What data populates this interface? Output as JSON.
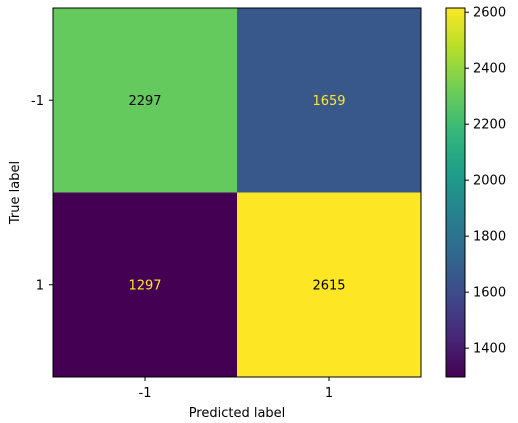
{
  "chart_data": {
    "type": "heatmap",
    "title": "",
    "xlabel": "Predicted label",
    "ylabel": "True label",
    "x_categories": [
      "-1",
      "1"
    ],
    "y_categories": [
      "-1",
      "1"
    ],
    "values": [
      [
        2297,
        1659
      ],
      [
        1297,
        2615
      ]
    ],
    "colormap": "viridis",
    "colorbar": {
      "range": [
        1297,
        2615
      ],
      "ticks": [
        1400,
        1600,
        1800,
        2000,
        2200,
        2400,
        2600
      ]
    }
  }
}
